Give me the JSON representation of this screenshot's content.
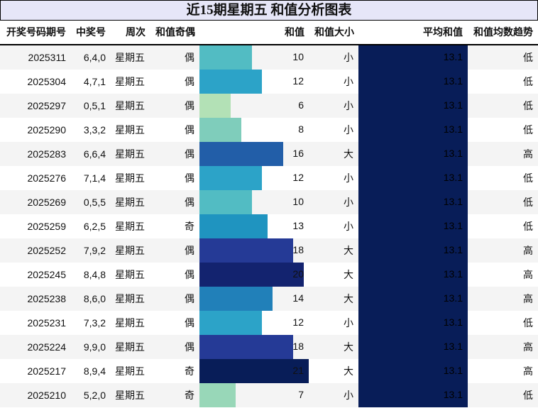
{
  "title": "近15期星期五 和值分析图表",
  "headers": [
    "开奖号码期号",
    "中奖号",
    "周次",
    "和值奇偶",
    "和值",
    "和值大小",
    "平均和值",
    "和值均数趋势"
  ],
  "avg_color": "#081d58",
  "max_sum": 21,
  "rows": [
    {
      "issue": "2025311",
      "nums": "6,4,0",
      "week": "星期五",
      "parity": "偶",
      "sum": 10,
      "size": "小",
      "avg": "13.1",
      "trend": "低",
      "color": "#52bcc3"
    },
    {
      "issue": "2025304",
      "nums": "4,7,1",
      "week": "星期五",
      "parity": "偶",
      "sum": 12,
      "size": "小",
      "avg": "13.1",
      "trend": "低",
      "color": "#2ca3c8"
    },
    {
      "issue": "2025297",
      "nums": "0,5,1",
      "week": "星期五",
      "parity": "偶",
      "sum": 6,
      "size": "小",
      "avg": "13.1",
      "trend": "低",
      "color": "#b3e1b6"
    },
    {
      "issue": "2025290",
      "nums": "3,3,2",
      "week": "星期五",
      "parity": "偶",
      "sum": 8,
      "size": "小",
      "avg": "13.1",
      "trend": "低",
      "color": "#7fcdbb"
    },
    {
      "issue": "2025283",
      "nums": "6,6,4",
      "week": "星期五",
      "parity": "偶",
      "sum": 16,
      "size": "大",
      "avg": "13.1",
      "trend": "高",
      "color": "#225ea8"
    },
    {
      "issue": "2025276",
      "nums": "7,1,4",
      "week": "星期五",
      "parity": "偶",
      "sum": 12,
      "size": "小",
      "avg": "13.1",
      "trend": "低",
      "color": "#2ca3c8"
    },
    {
      "issue": "2025269",
      "nums": "0,5,5",
      "week": "星期五",
      "parity": "偶",
      "sum": 10,
      "size": "小",
      "avg": "13.1",
      "trend": "低",
      "color": "#52bcc3"
    },
    {
      "issue": "2025259",
      "nums": "6,2,5",
      "week": "星期五",
      "parity": "奇",
      "sum": 13,
      "size": "小",
      "avg": "13.1",
      "trend": "低",
      "color": "#1f94c0"
    },
    {
      "issue": "2025252",
      "nums": "7,9,2",
      "week": "星期五",
      "parity": "偶",
      "sum": 18,
      "size": "大",
      "avg": "13.1",
      "trend": "高",
      "color": "#253a96"
    },
    {
      "issue": "2025245",
      "nums": "8,4,8",
      "week": "星期五",
      "parity": "偶",
      "sum": 20,
      "size": "大",
      "avg": "13.1",
      "trend": "高",
      "color": "#13236f"
    },
    {
      "issue": "2025238",
      "nums": "8,6,0",
      "week": "星期五",
      "parity": "偶",
      "sum": 14,
      "size": "大",
      "avg": "13.1",
      "trend": "高",
      "color": "#2180b9"
    },
    {
      "issue": "2025231",
      "nums": "7,3,2",
      "week": "星期五",
      "parity": "偶",
      "sum": 12,
      "size": "小",
      "avg": "13.1",
      "trend": "低",
      "color": "#2ca3c8"
    },
    {
      "issue": "2025224",
      "nums": "9,9,0",
      "week": "星期五",
      "parity": "偶",
      "sum": 18,
      "size": "大",
      "avg": "13.1",
      "trend": "高",
      "color": "#253a96"
    },
    {
      "issue": "2025217",
      "nums": "8,9,4",
      "week": "星期五",
      "parity": "奇",
      "sum": 21,
      "size": "大",
      "avg": "13.1",
      "trend": "高",
      "color": "#081d58"
    },
    {
      "issue": "2025210",
      "nums": "5,2,0",
      "week": "星期五",
      "parity": "奇",
      "sum": 7,
      "size": "小",
      "avg": "13.1",
      "trend": "低",
      "color": "#98d7b8"
    }
  ]
}
